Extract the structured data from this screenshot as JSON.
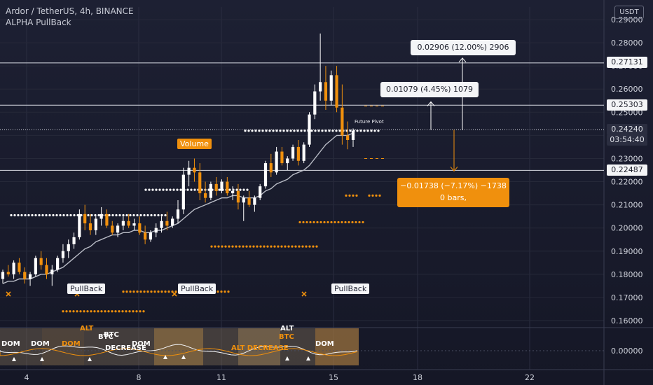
{
  "header": {
    "symbol_line": "Ardor / TetherUS, 4h, BINANCE",
    "indicator_line": "ALPHA PullBack"
  },
  "currency_badge": "USDT",
  "price_axis": {
    "ticks": [
      "0.29000",
      "0.28000",
      "0.27000",
      "0.26000",
      "0.25000",
      "0.24000",
      "0.23000",
      "0.22000",
      "0.21000",
      "0.20000",
      "0.19000",
      "0.18000",
      "0.17000",
      "0.16000"
    ],
    "osc_tick": "0.00000"
  },
  "price_labels": {
    "upper": "0.27131",
    "mid": "0.25303",
    "current": "0.24240",
    "countdown": "03:54:40",
    "lower": "0.22487"
  },
  "time_axis": {
    "ticks": [
      "4",
      "8",
      "11",
      "15",
      "18",
      "22"
    ]
  },
  "measurements": {
    "up_large": "0.02906 (12.00%) 2906",
    "up_small": "0.01079 (4.45%) 1079",
    "down_line1": "−0.01738 (−7.17%) −1738",
    "down_line2": "0 bars,"
  },
  "labels": {
    "volume": "Volume",
    "pullback": "PullBack",
    "future_pivot": "Future Pivot"
  },
  "oscillator_labels": [
    "DOM",
    "DOM",
    "DOM",
    "BTC",
    "DOM",
    "ALT",
    "BTC",
    "DOM",
    "ALT DECREASE",
    "DECREASE",
    "ALT",
    "BTC"
  ],
  "colors": {
    "up": "#ffffff",
    "down": "#f0900d",
    "accent": "#f0900d",
    "ma": "#b9bcc6",
    "line": "#d7d9e0",
    "background": "#1a1c2c"
  },
  "chart_data": {
    "type": "candlestick",
    "title": "Ardor / TetherUS, 4h, BINANCE",
    "ylim": [
      0.155,
      0.295
    ],
    "x_ticks": [
      "4",
      "8",
      "11",
      "15",
      "18",
      "22"
    ],
    "candles": [
      [
        0.178,
        0.182,
        0.176,
        0.181
      ],
      [
        0.181,
        0.184,
        0.179,
        0.18
      ],
      [
        0.18,
        0.186,
        0.178,
        0.185
      ],
      [
        0.185,
        0.187,
        0.18,
        0.181
      ],
      [
        0.181,
        0.183,
        0.176,
        0.178
      ],
      [
        0.178,
        0.181,
        0.175,
        0.18
      ],
      [
        0.18,
        0.188,
        0.179,
        0.187
      ],
      [
        0.187,
        0.19,
        0.182,
        0.184
      ],
      [
        0.184,
        0.187,
        0.178,
        0.18
      ],
      [
        0.18,
        0.184,
        0.175,
        0.182
      ],
      [
        0.182,
        0.188,
        0.181,
        0.187
      ],
      [
        0.187,
        0.193,
        0.185,
        0.19
      ],
      [
        0.19,
        0.195,
        0.187,
        0.193
      ],
      [
        0.193,
        0.198,
        0.191,
        0.196
      ],
      [
        0.196,
        0.208,
        0.195,
        0.206
      ],
      [
        0.206,
        0.21,
        0.199,
        0.202
      ],
      [
        0.202,
        0.206,
        0.197,
        0.199
      ],
      [
        0.199,
        0.205,
        0.197,
        0.204
      ],
      [
        0.204,
        0.209,
        0.201,
        0.206
      ],
      [
        0.206,
        0.208,
        0.2,
        0.201
      ],
      [
        0.201,
        0.203,
        0.197,
        0.198
      ],
      [
        0.198,
        0.202,
        0.196,
        0.201
      ],
      [
        0.201,
        0.205,
        0.199,
        0.203
      ],
      [
        0.203,
        0.206,
        0.2,
        0.201
      ],
      [
        0.201,
        0.204,
        0.199,
        0.202
      ],
      [
        0.202,
        0.205,
        0.197,
        0.198
      ],
      [
        0.198,
        0.201,
        0.193,
        0.195
      ],
      [
        0.195,
        0.199,
        0.194,
        0.198
      ],
      [
        0.198,
        0.202,
        0.196,
        0.2
      ],
      [
        0.2,
        0.205,
        0.198,
        0.203
      ],
      [
        0.203,
        0.207,
        0.199,
        0.201
      ],
      [
        0.201,
        0.205,
        0.2,
        0.204
      ],
      [
        0.204,
        0.212,
        0.202,
        0.208
      ],
      [
        0.208,
        0.226,
        0.206,
        0.223
      ],
      [
        0.223,
        0.229,
        0.218,
        0.226
      ],
      [
        0.226,
        0.23,
        0.22,
        0.224
      ],
      [
        0.224,
        0.228,
        0.212,
        0.215
      ],
      [
        0.215,
        0.22,
        0.211,
        0.213
      ],
      [
        0.213,
        0.22,
        0.212,
        0.219
      ],
      [
        0.219,
        0.222,
        0.214,
        0.216
      ],
      [
        0.216,
        0.221,
        0.215,
        0.22
      ],
      [
        0.22,
        0.222,
        0.214,
        0.215
      ],
      [
        0.215,
        0.218,
        0.212,
        0.216
      ],
      [
        0.216,
        0.219,
        0.208,
        0.211
      ],
      [
        0.211,
        0.214,
        0.203,
        0.213
      ],
      [
        0.213,
        0.216,
        0.209,
        0.21
      ],
      [
        0.21,
        0.214,
        0.207,
        0.213
      ],
      [
        0.213,
        0.219,
        0.212,
        0.218
      ],
      [
        0.218,
        0.229,
        0.217,
        0.228
      ],
      [
        0.228,
        0.232,
        0.222,
        0.224
      ],
      [
        0.224,
        0.235,
        0.223,
        0.233
      ],
      [
        0.233,
        0.235,
        0.227,
        0.228
      ],
      [
        0.228,
        0.231,
        0.225,
        0.23
      ],
      [
        0.23,
        0.236,
        0.229,
        0.235
      ],
      [
        0.235,
        0.238,
        0.227,
        0.229
      ],
      [
        0.229,
        0.237,
        0.228,
        0.236
      ],
      [
        0.236,
        0.25,
        0.235,
        0.249
      ],
      [
        0.249,
        0.262,
        0.247,
        0.259
      ],
      [
        0.259,
        0.284,
        0.255,
        0.263
      ],
      [
        0.263,
        0.27,
        0.251,
        0.255
      ],
      [
        0.255,
        0.268,
        0.253,
        0.266
      ],
      [
        0.266,
        0.27,
        0.25,
        0.252
      ],
      [
        0.252,
        0.262,
        0.236,
        0.24
      ],
      [
        0.24,
        0.246,
        0.234,
        0.238
      ],
      [
        0.238,
        0.243,
        0.235,
        0.242
      ]
    ],
    "ma": [
      0.176,
      0.177,
      0.177,
      0.178,
      0.178,
      0.178,
      0.179,
      0.18,
      0.18,
      0.181,
      0.182,
      0.183,
      0.185,
      0.187,
      0.189,
      0.191,
      0.192,
      0.194,
      0.195,
      0.196,
      0.197,
      0.197,
      0.198,
      0.198,
      0.199,
      0.199,
      0.198,
      0.198,
      0.199,
      0.199,
      0.2,
      0.201,
      0.202,
      0.204,
      0.206,
      0.208,
      0.209,
      0.21,
      0.211,
      0.212,
      0.213,
      0.213,
      0.214,
      0.214,
      0.213,
      0.213,
      0.213,
      0.214,
      0.216,
      0.217,
      0.219,
      0.22,
      0.221,
      0.223,
      0.224,
      0.225,
      0.227,
      0.23,
      0.233,
      0.236,
      0.238,
      0.24,
      0.24,
      0.24,
      0.241
    ],
    "horizontal_lines": [
      0.27131,
      0.25303,
      0.2424,
      0.22487
    ],
    "pivot_levels": [
      {
        "from": 1,
        "to": 15,
        "price": 0.2055,
        "color": "white"
      },
      {
        "from": 21,
        "to": 45,
        "price": 0.2165,
        "color": "white"
      },
      {
        "from": 35,
        "to": 46,
        "price": 0.2165,
        "color": "white"
      },
      {
        "from": 44,
        "to": 66,
        "price": 0.2245,
        "color": "white"
      },
      {
        "from": 47,
        "to": 70,
        "price": 0.2245,
        "color": "white"
      }
    ]
  }
}
